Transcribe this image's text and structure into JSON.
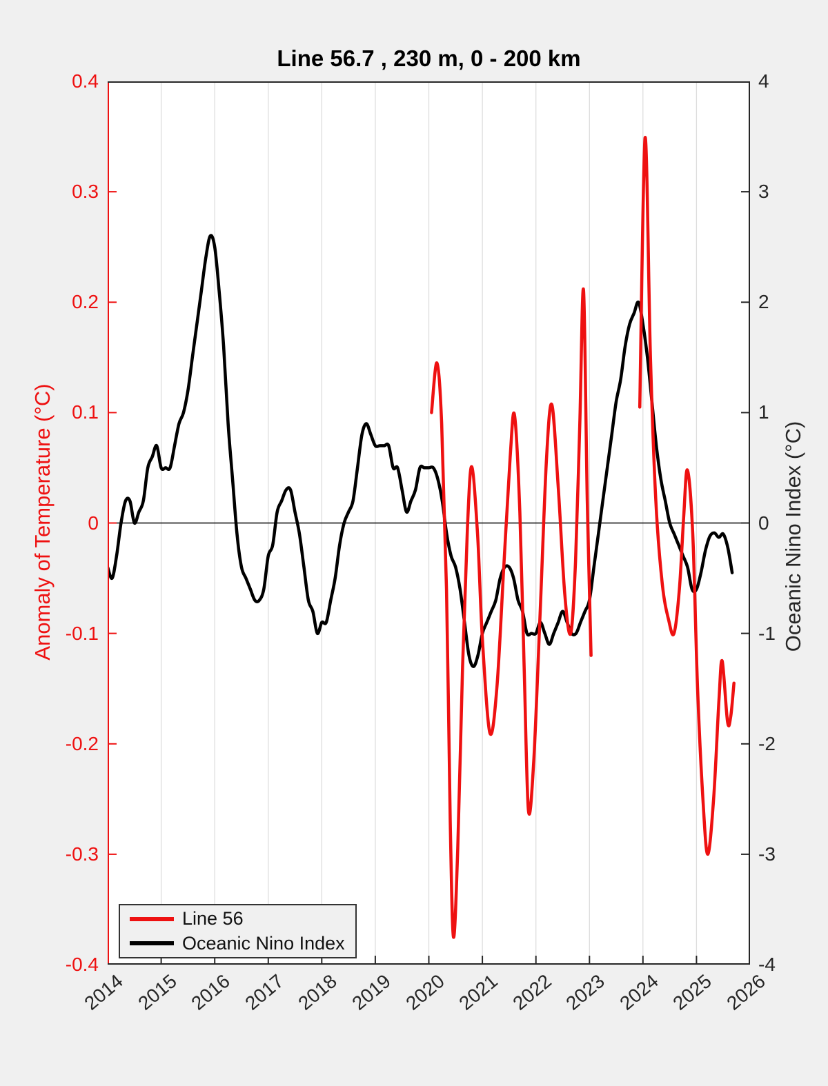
{
  "figure": {
    "background": "#f0f0f0",
    "plot_background": "#ffffff",
    "grid_color": "#dddddd",
    "axis_dark_color": "#262626"
  },
  "chart_data": {
    "type": "line",
    "title": "Line 56.7 , 230 m, 0 - 200 km",
    "grid": "vertical-only",
    "zero_line": true,
    "x_axis": {
      "min": 2014,
      "max": 2026,
      "tick_values": [
        2014,
        2015,
        2016,
        2017,
        2018,
        2019,
        2020,
        2021,
        2022,
        2023,
        2024,
        2025,
        2026
      ],
      "tick_labels": [
        "2014",
        "2015",
        "2016",
        "2017",
        "2018",
        "2019",
        "2020",
        "2021",
        "2022",
        "2023",
        "2024",
        "2025",
        "2026"
      ],
      "label_rotation_deg": -40
    },
    "left_axis": {
      "label": "Anomaly of Temperature (°C)",
      "color": "#ee1111",
      "min": -0.4,
      "max": 0.4,
      "tick_values": [
        0.4,
        0.3,
        0.2,
        0.1,
        0,
        -0.1,
        -0.2,
        -0.3,
        -0.4
      ],
      "tick_labels": [
        "0.4",
        "0.3",
        "0.2",
        "0.1",
        "0",
        "-0.1",
        "-0.2",
        "-0.3",
        "-0.4"
      ]
    },
    "right_axis": {
      "label": "Oceanic Nino Index (°C)",
      "color": "#262626",
      "min": -4,
      "max": 4,
      "tick_values": [
        4,
        3,
        2,
        1,
        0,
        -1,
        -2,
        -3,
        -4
      ],
      "tick_labels": [
        "4",
        "3",
        "2",
        "1",
        "0",
        "-1",
        "-2",
        "-3",
        "-4"
      ]
    },
    "legend": {
      "position": "bottom-left",
      "items": [
        {
          "label": "Line 56",
          "color": "#ee1111"
        },
        {
          "label": "Oceanic Nino Index",
          "color": "#000000"
        }
      ]
    },
    "series": [
      {
        "name": "Oceanic Nino Index",
        "axis": "right",
        "color": "#000000",
        "line_width": 4.5,
        "x_start": 2014.0,
        "x_step_years": 0.0833333,
        "values": [
          -0.4,
          -0.5,
          -0.3,
          0.0,
          0.2,
          0.2,
          0.0,
          0.1,
          0.2,
          0.5,
          0.6,
          0.7,
          0.5,
          0.5,
          0.5,
          0.7,
          0.9,
          1.0,
          1.2,
          1.5,
          1.8,
          2.1,
          2.4,
          2.6,
          2.5,
          2.1,
          1.6,
          0.9,
          0.4,
          -0.1,
          -0.4,
          -0.5,
          -0.6,
          -0.7,
          -0.7,
          -0.6,
          -0.3,
          -0.2,
          0.1,
          0.2,
          0.3,
          0.3,
          0.1,
          -0.1,
          -0.4,
          -0.7,
          -0.8,
          -1.0,
          -0.9,
          -0.9,
          -0.7,
          -0.5,
          -0.2,
          0.0,
          0.1,
          0.2,
          0.5,
          0.8,
          0.9,
          0.8,
          0.7,
          0.7,
          0.7,
          0.7,
          0.5,
          0.5,
          0.3,
          0.1,
          0.2,
          0.3,
          0.5,
          0.5,
          0.5,
          0.5,
          0.4,
          0.2,
          -0.1,
          -0.3,
          -0.4,
          -0.6,
          -0.9,
          -1.2,
          -1.3,
          -1.2,
          -1.0,
          -0.9,
          -0.8,
          -0.7,
          -0.5,
          -0.4,
          -0.4,
          -0.5,
          -0.7,
          -0.8,
          -1.0,
          -1.0,
          -1.0,
          -0.9,
          -1.0,
          -1.1,
          -1.0,
          -0.9,
          -0.8,
          -0.9,
          -1.0,
          -1.0,
          -0.9,
          -0.8,
          -0.7,
          -0.4,
          -0.1,
          0.2,
          0.5,
          0.8,
          1.1,
          1.3,
          1.6,
          1.8,
          1.9,
          2.0,
          1.8,
          1.5,
          1.1,
          0.7,
          0.4,
          0.2,
          0.0,
          -0.1,
          -0.2,
          -0.3,
          -0.4,
          -0.6,
          -0.6,
          -0.45,
          -0.25,
          -0.12,
          -0.09,
          -0.13,
          -0.1,
          -0.22,
          -0.45
        ]
      },
      {
        "name": "Line 56",
        "axis": "left",
        "color": "#ee1111",
        "line_width": 4.5,
        "segments": [
          [
            [
              2020.05,
              0.1
            ],
            [
              2020.15,
              0.145
            ],
            [
              2020.24,
              0.09
            ],
            [
              2020.33,
              -0.06
            ],
            [
              2020.4,
              -0.27
            ],
            [
              2020.46,
              -0.375
            ],
            [
              2020.54,
              -0.295
            ],
            [
              2020.63,
              -0.13
            ],
            [
              2020.72,
              -0.005
            ],
            [
              2020.8,
              0.051
            ],
            [
              2020.91,
              -0.01
            ],
            [
              2021.0,
              -0.105
            ],
            [
              2021.14,
              -0.19
            ],
            [
              2021.27,
              -0.15
            ],
            [
              2021.4,
              -0.04
            ],
            [
              2021.52,
              0.06
            ],
            [
              2021.6,
              0.098
            ],
            [
              2021.7,
              0.01
            ],
            [
              2021.78,
              -0.13
            ],
            [
              2021.86,
              -0.26
            ],
            [
              2021.96,
              -0.215
            ],
            [
              2022.08,
              -0.08
            ],
            [
              2022.2,
              0.06
            ],
            [
              2022.3,
              0.107
            ],
            [
              2022.42,
              0.03
            ],
            [
              2022.54,
              -0.065
            ],
            [
              2022.65,
              -0.1
            ],
            [
              2022.74,
              -0.035
            ],
            [
              2022.82,
              0.09
            ],
            [
              2022.89,
              0.211
            ],
            [
              2022.96,
              0.02
            ],
            [
              2023.03,
              -0.12
            ]
          ],
          [
            [
              2023.94,
              0.105
            ],
            [
              2024.04,
              0.349
            ],
            [
              2024.14,
              0.15
            ],
            [
              2024.24,
              0.02
            ],
            [
              2024.36,
              -0.055
            ],
            [
              2024.48,
              -0.088
            ],
            [
              2024.58,
              -0.1
            ],
            [
              2024.68,
              -0.06
            ],
            [
              2024.76,
              0.005
            ],
            [
              2024.83,
              0.048
            ],
            [
              2024.93,
              -0.01
            ],
            [
              2025.02,
              -0.15
            ],
            [
              2025.12,
              -0.25
            ],
            [
              2025.21,
              -0.3
            ],
            [
              2025.32,
              -0.25
            ],
            [
              2025.42,
              -0.16
            ],
            [
              2025.48,
              -0.125
            ],
            [
              2025.58,
              -0.18
            ],
            [
              2025.64,
              -0.175
            ],
            [
              2025.7,
              -0.145
            ]
          ]
        ]
      }
    ]
  }
}
